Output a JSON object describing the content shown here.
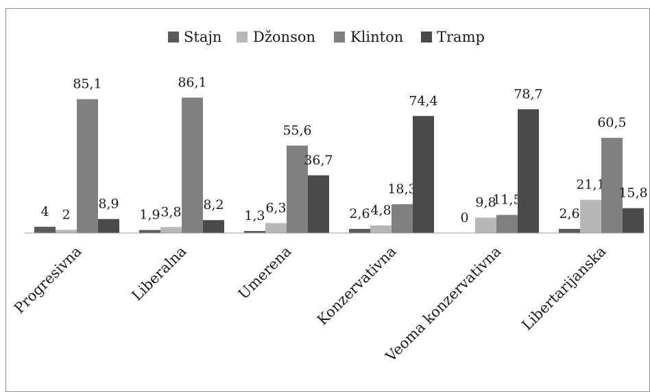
{
  "chart_data": {
    "type": "bar",
    "categories": [
      "Progresivna",
      "Liberalna",
      "Umerena",
      "Konzervativna",
      "Veoma konzervativna",
      "Libertarijanska"
    ],
    "series": [
      {
        "name": "Stajn",
        "color": "#5a5a5a",
        "values": [
          4,
          1.9,
          1.3,
          2.6,
          0,
          2.6
        ],
        "labels": [
          "4",
          "1,9",
          "1,3",
          "2,6",
          "0",
          "2,6"
        ]
      },
      {
        "name": "Džonson",
        "color": "#b7b7b7",
        "values": [
          2,
          3.8,
          6.3,
          4.8,
          9.8,
          21.1
        ],
        "labels": [
          "2",
          "3,8",
          "6,3",
          "4,8",
          "9,8",
          "21,1"
        ]
      },
      {
        "name": "Klinton",
        "color": "#808080",
        "values": [
          85.1,
          86.1,
          55.6,
          18.3,
          11.5,
          60.5
        ],
        "labels": [
          "85,1",
          "86,1",
          "55,6",
          "18,3",
          "11,5",
          "60,5"
        ]
      },
      {
        "name": "Tramp",
        "color": "#4a4a4a",
        "values": [
          8.9,
          8.2,
          36.7,
          74.4,
          78.7,
          15.8
        ],
        "labels": [
          "8,9",
          "8,2",
          "36,7",
          "74,4",
          "78,7",
          "15,8"
        ]
      }
    ],
    "legend_position": "top",
    "grid": false,
    "ylim": [
      0,
      100
    ]
  }
}
